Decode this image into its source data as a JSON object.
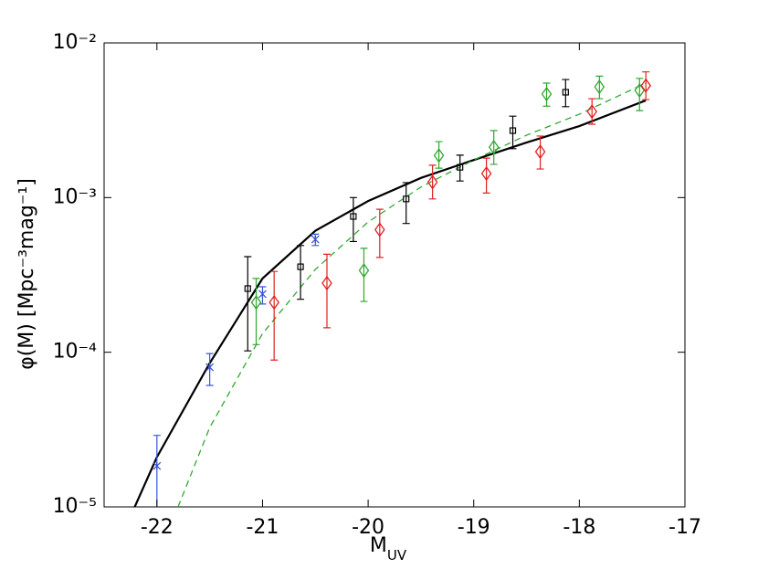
{
  "chart_data": {
    "type": "errorbar",
    "ylabel": "φ(M)  [Mpc⁻³mag⁻¹]",
    "xlabel": "M",
    "xlabel_subscript": "UV",
    "xlim": [
      -22.5,
      -17
    ],
    "xticks": [
      -22,
      -21,
      -20,
      -19,
      -18,
      -17
    ],
    "ylim": [
      1e-05,
      0.01
    ],
    "log_y": true,
    "yticks": [
      {
        "value": 0.01,
        "label": "10⁻²"
      },
      {
        "value": 0.001,
        "label": "10⁻³"
      },
      {
        "value": 0.0001,
        "label": "10⁻⁴"
      },
      {
        "value": 1e-05,
        "label": "10⁻⁵"
      }
    ],
    "series": [
      {
        "color": "#3a55d6",
        "marker": "x",
        "x": [
          -22.0,
          -21.5,
          -21.0,
          -20.5
        ],
        "values": [
          1.84e-05,
          8e-05,
          0.000238,
          0.000537
        ],
        "lower": [
          9e-06,
          6.1e-05,
          0.000205,
          0.00049
        ],
        "upper": [
          2.9e-05,
          9.8e-05,
          0.000265,
          0.00058
        ]
      },
      {
        "color": "#000000",
        "marker": "square",
        "x": [
          -21.14,
          -20.64,
          -20.14,
          -19.64,
          -19.13,
          -18.63,
          -18.13
        ],
        "values": [
          0.000258,
          0.000357,
          0.000755,
          0.00098,
          0.00157,
          0.00271,
          0.0048
        ],
        "lower": [
          0.000102,
          0.00022,
          0.00052,
          0.00068,
          0.00128,
          0.00207,
          0.00387
        ],
        "upper": [
          0.000415,
          0.00049,
          0.001,
          0.00125,
          0.00188,
          0.00336,
          0.0058
        ]
      },
      {
        "color": "#2fa82f",
        "marker": "diamond",
        "x": [
          -21.06,
          -20.04,
          -19.33,
          -18.81,
          -18.31,
          -17.81,
          -17.43
        ],
        "values": [
          0.00021,
          0.000338,
          0.00187,
          0.00212,
          0.00467,
          0.0052,
          0.00493
        ],
        "lower": [
          0.000112,
          0.000213,
          0.00155,
          0.00164,
          0.0039,
          0.00436,
          0.00365
        ],
        "upper": [
          0.0003,
          0.00047,
          0.0023,
          0.00271,
          0.0055,
          0.0061,
          0.0059
        ]
      },
      {
        "color": "#e02020",
        "marker": "diamond",
        "x": [
          -20.89,
          -20.39,
          -19.89,
          -19.39,
          -18.88,
          -18.37,
          -17.88,
          -17.37
        ],
        "values": [
          0.00021,
          0.00028,
          0.00062,
          0.00126,
          0.00143,
          0.00198,
          0.0036,
          0.0053
        ],
        "lower": [
          8.9e-05,
          0.000144,
          0.00041,
          0.00098,
          0.00107,
          0.00153,
          0.00298,
          0.0043
        ],
        "upper": [
          0.000333,
          0.00043,
          0.00084,
          0.00162,
          0.0018,
          0.0025,
          0.00436,
          0.0065
        ]
      }
    ],
    "lines": [
      {
        "color": "#000000",
        "dash": "solid",
        "x": [
          -22.21,
          -22.0,
          -21.5,
          -21.0,
          -20.5,
          -20.0,
          -19.5,
          -19.0,
          -18.5,
          -18.0,
          -17.37
        ],
        "values": [
          1e-05,
          2.1e-05,
          8.5e-05,
          0.0003,
          0.00061,
          0.00095,
          0.00134,
          0.00175,
          0.00227,
          0.0029,
          0.00425
        ]
      },
      {
        "color": "#2fa82f",
        "dash": "dashed",
        "x": [
          -21.8,
          -21.5,
          -21.0,
          -20.5,
          -20.0,
          -19.5,
          -19.0,
          -18.5,
          -18.0,
          -17.37
        ],
        "values": [
          1e-05,
          3.26e-05,
          0.000132,
          0.000343,
          0.000695,
          0.00117,
          0.00175,
          0.00253,
          0.00346,
          0.0055
        ]
      }
    ]
  }
}
